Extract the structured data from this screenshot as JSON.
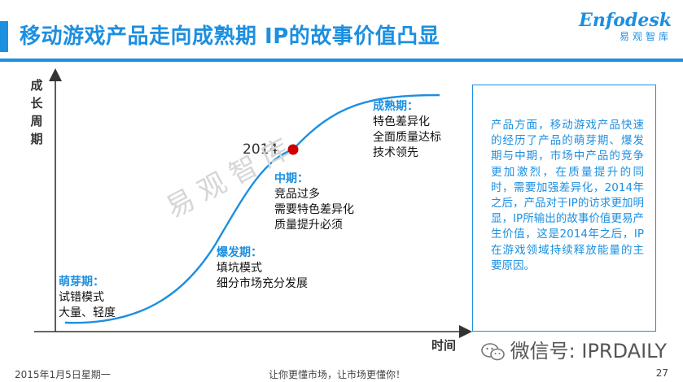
{
  "header": {
    "title": "移动游戏产品走向成熟期 IP的故事价值凸显",
    "logo_main": "Enfodesk",
    "logo_sub": "易观智库",
    "accent_color": "#1d8fe0"
  },
  "diagram": {
    "y_axis_label": "成长周期",
    "x_axis_label": "时间",
    "marker_label": "2014",
    "marker_color": "#cc0000",
    "watermark": "易观智库",
    "stages": [
      {
        "name": "萌芽期：",
        "lines": [
          "试错模式",
          "大量、轻度"
        ]
      },
      {
        "name": "爆发期：",
        "lines": [
          "填坑模式",
          "细分市场充分发展"
        ]
      },
      {
        "name": "中期：",
        "lines": [
          "竞品过多",
          "需要特色差异化",
          "质量提升必须"
        ]
      },
      {
        "name": "成熟期：",
        "lines": [
          "特色差异化",
          "全面质量达标",
          "技术领先"
        ]
      }
    ]
  },
  "note": {
    "text": "产品方面，移动游戏产品快速的经历了产品的萌芽期、爆发期与中期，市场中产品的竞争更加激烈，在质量提升的同时，需要加强差异化，2014年之后，产品对于IP的访求更加明显，IP所输出的故事价值更易产生价值，这是2014年之后，IP在游戏领域持续释放能量的主要原因。"
  },
  "wechat": {
    "text": "微信号: IPRDAILY",
    "icon": "wechat-icon"
  },
  "footer": {
    "date": "2015年1月5日星期一",
    "slogan": "让你更懂市场，让市场更懂你！",
    "page_number": "27"
  }
}
